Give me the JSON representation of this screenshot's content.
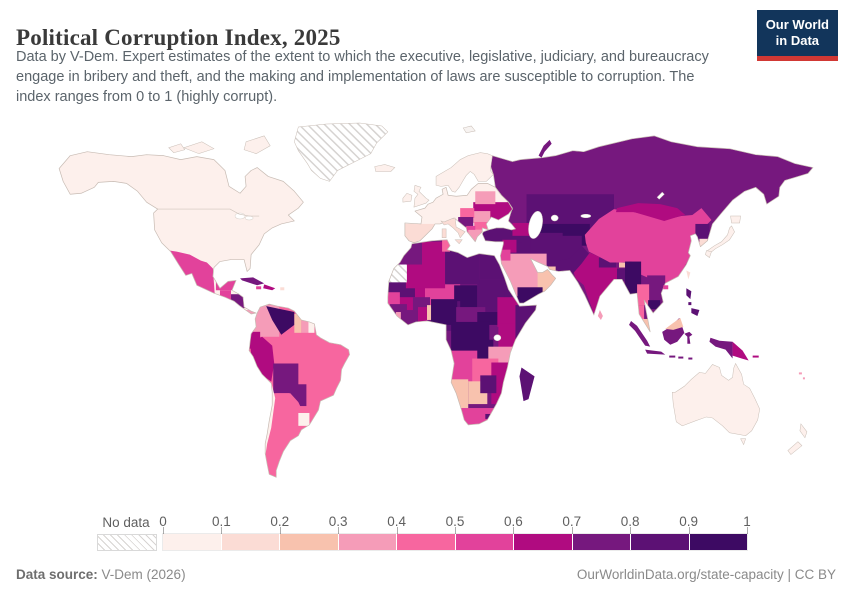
{
  "header": {
    "title": "Political Corruption Index, 2025",
    "subtitle_line1": "Data by V-Dem. Expert estimates of the extent to which the executive, legislative, judiciary, and bureaucracy",
    "subtitle_line2": "engage in bribery and theft, and the making and implementation of laws are susceptible to corruption. The",
    "subtitle_line3": "index ranges from 0 to 1 (highly corrupt).",
    "logo_line1": "Our World",
    "logo_line2": "in Data",
    "logo_bg": "#12355b",
    "logo_accent": "#d13834"
  },
  "footer": {
    "source_label": "Data source:",
    "source_value": " V-Dem (2026)",
    "right_text": "OurWorldinData.org/state-capacity | CC BY"
  },
  "chart_data": {
    "type": "choropleth_map",
    "title": "Political Corruption Index, 2025",
    "value_range": [
      0,
      1
    ],
    "legend_no_data_label": "No data",
    "legend_ticks": [
      "0",
      "0.1",
      "0.2",
      "0.3",
      "0.4",
      "0.5",
      "0.6",
      "0.7",
      "0.8",
      "0.9",
      "1"
    ],
    "palette": [
      "#fdf0ec",
      "#fbdcd5",
      "#f8c2ae",
      "#f59cb8",
      "#f7669f",
      "#e2429b",
      "#b00b80",
      "#76187e",
      "#5c1174",
      "#3d0a63"
    ],
    "no_data_regions": [
      "Greenland",
      "Western Sahara"
    ],
    "values": {
      "Canada": 0.05,
      "United States": 0.05,
      "Mexico": 0.55,
      "Guatemala": 0.55,
      "Honduras": 0.75,
      "Costa Rica": 0.15,
      "Panama": 0.35,
      "Cuba": 0.75,
      "Haiti": 0.65,
      "Jamaica": 0.55,
      "Puerto Rico": 0.15,
      "Brazil": 0.45,
      "Colombia": 0.35,
      "Venezuela": 0.95,
      "Guyana": 0.25,
      "Suriname": 0.35,
      "French Guiana": 0.05,
      "Ecuador": 0.65,
      "Peru": 0.65,
      "Bolivia": 0.75,
      "Paraguay": 0.75,
      "Chile": 0.05,
      "Argent_x": 0,
      "Argentina": 0.45,
      "Uruguay": 0.05,
      "France": 0.05,
      "Spain": 0.15,
      "Italy": 0.15,
      "Norway": 0.05,
      "United Kingdom": 0.05,
      "Ireland": 0.05,
      "Iceland": 0.05,
      "Belarus": 0.35,
      "Ukraine": 0.65,
      "Romania": 0.35,
      "Hungary": 0.45,
      "Serbia": 0.75,
      "Albania": 0.55,
      "Bulgaria": 0.45,
      "Greece": 0.35,
      "Republic of the Congo": 0.75,
      "Mali": 0.65,
      "Niger": 0.55,
      "Chad": 0.95,
      "Sudan": 0.85,
      "South Sudan": 0.95,
      "Mauritania": 0.85,
      "Algeria": 0.65,
      "Morocco": 0.75,
      "Tunisia": 0.45,
      "Libya": 0.85,
      "Egypt": 0.85,
      "Senegal": 0.55,
      "Guinea": 0.75,
      "Sierra Leone": 0.35,
      "Ivory Coast": 0.75,
      "Ghana": 0.65,
      "Benin": 0.25,
      "Burkina Faso": 0.75,
      "Cameroon": 0.85,
      "Nigeria": 0.95,
      "Central African Republic": 0.75,
      "Eritrea": 0.85,
      "Ethiopia": 0.65,
      "Somalia": 0.85,
      "Uganda": 0.75,
      "Democratic Republic of Congo": 0.95,
      "Kenya": 0.65,
      "Tanzania": 0.35,
      "Angola": 0.55,
      "Zambia": 0.45,
      "Namibia": 0.25,
      "Botswana": 0.25,
      "Mozambique": 0.65,
      "Zimbabwe": 0.85,
      "South Africa": 0.55,
      "Lesotho": 0.85,
      "Madagascar": 0.85,
      "Russia": 0.75,
      "Kazakhstan": 0.85,
      "Uzbekistan": 0.95,
      "Iran": 0.85,
      "Iraq": 0.85,
      "Saudi Arabia": 0.35,
      "Oman": 0.25,
      "Yemen": 0.95,
      "Turkey": 0.85,
      "Syria": 0.65,
      "Jordan": 0.55,
      "Azerbaijan": 0.65,
      "Afghanistan": 0.85,
      "Pakistan": 0.85,
      "India": 0.65,
      "Nepal": 0.85,
      "Bangladesh": 0.85,
      "Bhutan": 0.25,
      "China": 0.55,
      "Mongolia": 0.62,
      "North Korea": 0.85,
      "South Korea": 0.15,
      "Myanmar": 0.95,
      "Thailand": 0.45,
      "Vietnam": 0.75,
      "Cambodia": 0.95,
      "Malaysia": 0.25,
      "Sri Lanka": 0.35,
      "Taiwan": 0.15,
      "Japan": 0.05,
      "Philippines": 0.85,
      "Indonesia": 0.75,
      "Papua New Guinea": 0.68,
      "Fiji": 0.35,
      "Australia": 0.05,
      "New Zealand": 0.03
    }
  }
}
